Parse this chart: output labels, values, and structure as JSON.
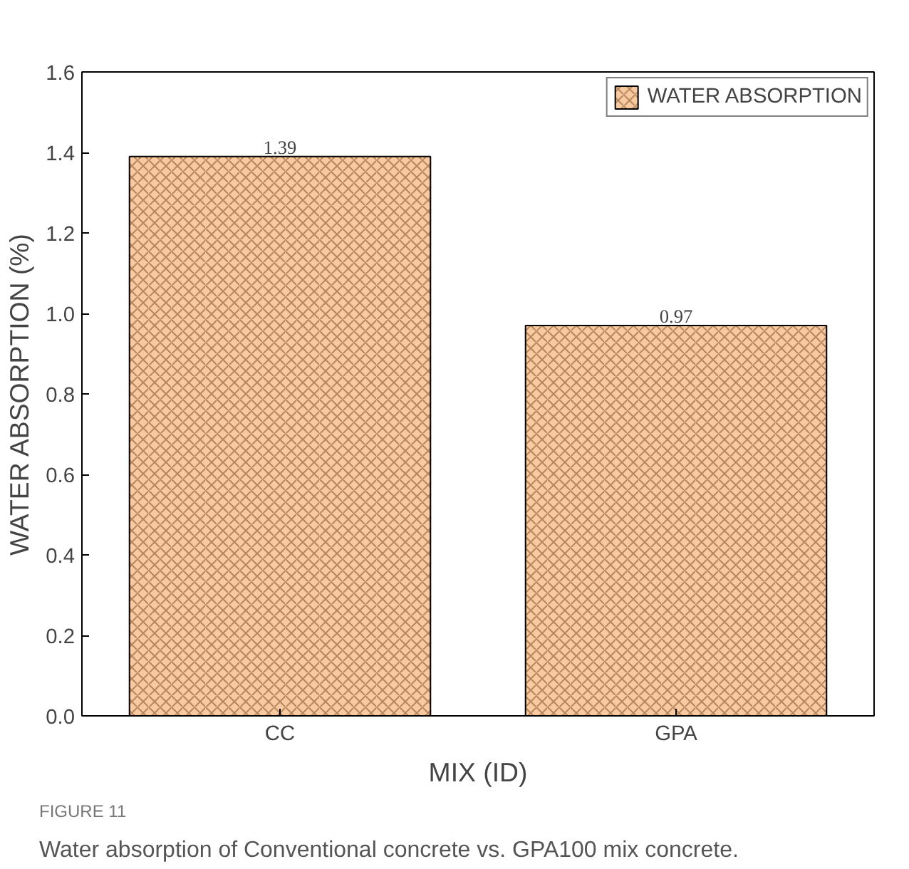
{
  "chart_data": {
    "type": "bar",
    "xlabel": "MIX (ID)",
    "ylabel": "WATER ABSORPTION (%)",
    "categories": [
      "CC",
      "GPA"
    ],
    "series": [
      {
        "name": "WATER ABSORPTION",
        "color": "#f9c9a0",
        "values": [
          1.39,
          0.97
        ]
      }
    ],
    "ylim": [
      0,
      1.6
    ],
    "yticks": [
      {
        "value": 0,
        "label": "0.0"
      },
      0.2,
      0.4,
      0.6,
      0.8,
      {
        "value": 1,
        "label": "1.0"
      },
      1.2,
      1.4,
      1.6
    ],
    "data_labels": true,
    "legend": "top right",
    "grid": false,
    "annotations": [
      "FIGURE 11",
      "Water absorption of Conventional concrete vs. GPA100 mix concrete."
    ]
  }
}
